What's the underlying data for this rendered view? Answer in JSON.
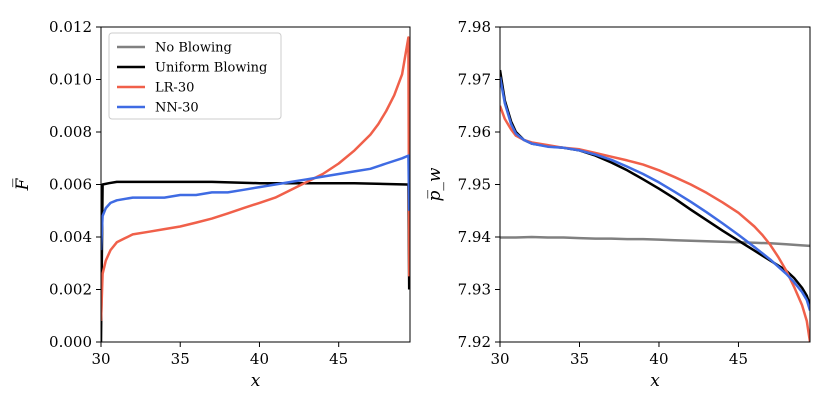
{
  "chart_data": [
    {
      "type": "line",
      "panel": "left",
      "xlabel": "x",
      "ylabel": "F̅",
      "xlim": [
        30,
        49.5
      ],
      "ylim": [
        0,
        0.012
      ],
      "xticks": [
        "30",
        "35",
        "40",
        "45"
      ],
      "xtick_values": [
        30,
        35,
        40,
        45
      ],
      "yticks": [
        "0.000",
        "0.002",
        "0.004",
        "0.006",
        "0.008",
        "0.010",
        "0.012"
      ],
      "ytick_values": [
        0,
        0.002,
        0.004,
        0.006,
        0.008,
        0.01,
        0.012
      ],
      "legend_position": "top-left",
      "series": [
        {
          "name": "No Blowing",
          "color": "#808080",
          "x": [],
          "y": []
        },
        {
          "name": "Uniform Blowing",
          "color": "#000000",
          "x": [
            30,
            30.1,
            30.5,
            31,
            33,
            35,
            37,
            40,
            43,
            46,
            49.3,
            49.4,
            49.45
          ],
          "y": [
            0,
            0.006,
            0.00605,
            0.0061,
            0.0061,
            0.0061,
            0.0061,
            0.00605,
            0.00605,
            0.00605,
            0.006,
            0.006,
            0.002
          ]
        },
        {
          "name": "LR-30",
          "color": "#f0604a",
          "x": [
            30,
            30.1,
            30.3,
            30.6,
            31,
            31.5,
            32,
            33,
            34,
            35,
            36,
            37,
            38,
            39,
            40,
            41,
            42,
            43,
            44,
            45,
            46,
            47,
            47.5,
            48,
            48.5,
            49,
            49.4,
            49.45
          ],
          "y": [
            0.0008,
            0.0026,
            0.0031,
            0.0035,
            0.0038,
            0.00395,
            0.0041,
            0.0042,
            0.0043,
            0.0044,
            0.00455,
            0.0047,
            0.0049,
            0.0051,
            0.0053,
            0.0055,
            0.0058,
            0.0061,
            0.0064,
            0.0068,
            0.0073,
            0.0079,
            0.0083,
            0.0088,
            0.0094,
            0.0102,
            0.0116,
            0.0025
          ]
        },
        {
          "name": "NN-30",
          "color": "#3f6be3",
          "x": [
            30,
            30.1,
            30.3,
            30.6,
            31,
            32,
            33,
            34,
            35,
            36,
            37,
            38,
            39,
            40,
            41,
            42,
            43,
            44,
            45,
            46,
            47,
            48,
            49,
            49.4,
            49.45
          ],
          "y": [
            0.0035,
            0.0048,
            0.0051,
            0.0053,
            0.0054,
            0.0055,
            0.0055,
            0.0055,
            0.0056,
            0.0056,
            0.0057,
            0.0057,
            0.0058,
            0.0059,
            0.006,
            0.0061,
            0.0062,
            0.0063,
            0.0064,
            0.0065,
            0.0066,
            0.0068,
            0.007,
            0.0071,
            0.005
          ]
        }
      ]
    },
    {
      "type": "line",
      "panel": "right",
      "xlabel": "x",
      "ylabel": "p̅_w",
      "xlim": [
        30,
        49.5
      ],
      "ylim": [
        7.92,
        7.98
      ],
      "xticks": [
        "30",
        "35",
        "40",
        "45"
      ],
      "xtick_values": [
        30,
        35,
        40,
        45
      ],
      "yticks": [
        "7.92",
        "7.93",
        "7.94",
        "7.95",
        "7.96",
        "7.97",
        "7.98"
      ],
      "ytick_values": [
        7.92,
        7.93,
        7.94,
        7.95,
        7.96,
        7.97,
        7.98
      ],
      "series": [
        {
          "name": "No Blowing",
          "color": "#808080",
          "x": [
            30,
            31,
            32,
            33,
            34,
            35,
            36,
            37,
            38,
            39,
            40,
            41,
            42,
            43,
            44,
            45,
            46,
            47,
            48,
            49,
            49.5
          ],
          "y": [
            7.9399,
            7.9399,
            7.94,
            7.9399,
            7.9399,
            7.9398,
            7.9397,
            7.9397,
            7.9396,
            7.9396,
            7.9395,
            7.9394,
            7.9393,
            7.9392,
            7.9391,
            7.939,
            7.9389,
            7.9388,
            7.9386,
            7.9384,
            7.9383
          ]
        },
        {
          "name": "Uniform Blowing",
          "color": "#000000",
          "x": [
            30,
            30.3,
            30.7,
            31,
            31.5,
            32,
            33,
            34,
            35,
            36,
            37,
            38,
            39,
            40,
            41,
            42,
            43,
            44,
            45,
            46,
            47,
            48,
            48.5,
            49,
            49.3,
            49.5
          ],
          "y": [
            7.9718,
            7.966,
            7.962,
            7.96,
            7.9585,
            7.9578,
            7.9573,
            7.957,
            7.9565,
            7.9555,
            7.9542,
            7.9527,
            7.951,
            7.9492,
            7.9473,
            7.9452,
            7.9432,
            7.9412,
            7.9393,
            7.9374,
            7.9355,
            7.9336,
            7.9322,
            7.9303,
            7.9288,
            7.927
          ]
        },
        {
          "name": "LR-30",
          "color": "#f0604a",
          "x": [
            30,
            30.3,
            30.7,
            31,
            31.5,
            32,
            33,
            34,
            35,
            36,
            37,
            38,
            39,
            40,
            41,
            42,
            43,
            44,
            45,
            46,
            46.5,
            47,
            47.5,
            48,
            48.5,
            49,
            49.3,
            49.5
          ],
          "y": [
            7.965,
            7.9625,
            7.9605,
            7.9593,
            7.9585,
            7.958,
            7.9575,
            7.957,
            7.9567,
            7.956,
            7.9553,
            7.9546,
            7.9538,
            7.9527,
            7.9514,
            7.95,
            7.9484,
            7.9466,
            7.9446,
            7.942,
            7.9404,
            7.9385,
            7.9362,
            7.9336,
            7.9305,
            7.927,
            7.924,
            7.92
          ]
        },
        {
          "name": "NN-30",
          "color": "#3f6be3",
          "x": [
            30,
            30.3,
            30.7,
            31,
            31.5,
            32,
            33,
            34,
            35,
            36,
            37,
            38,
            39,
            40,
            41,
            42,
            43,
            44,
            45,
            46,
            47,
            48,
            48.5,
            49,
            49.3,
            49.5
          ],
          "y": [
            7.9705,
            7.9655,
            7.9615,
            7.9597,
            7.9585,
            7.9578,
            7.9572,
            7.957,
            7.9565,
            7.9557,
            7.9547,
            7.9534,
            7.952,
            7.9504,
            7.9486,
            7.9467,
            7.9447,
            7.9426,
            7.9404,
            7.9381,
            7.9357,
            7.933,
            7.9314,
            7.9295,
            7.928,
            7.926
          ]
        }
      ]
    }
  ]
}
